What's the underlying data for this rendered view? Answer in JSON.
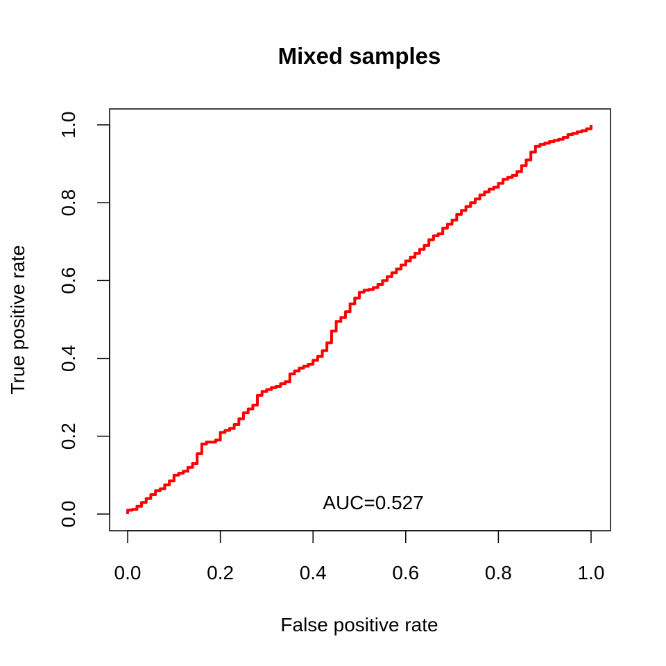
{
  "chart_data": {
    "type": "line",
    "title": "Mixed samples",
    "xlabel": "False positive rate",
    "ylabel": "True positive rate",
    "xlim": [
      0,
      1
    ],
    "ylim": [
      0,
      1
    ],
    "x_ticks": [
      "0.0",
      "0.2",
      "0.4",
      "0.6",
      "0.8",
      "1.0"
    ],
    "y_ticks": [
      "0.0",
      "0.2",
      "0.4",
      "0.6",
      "0.8",
      "1.0"
    ],
    "annotation": {
      "text": "AUC=0.527",
      "x": 0.53,
      "y": 0.03
    },
    "grid": false,
    "legend": "none",
    "series": [
      {
        "color": "#ff0000",
        "points": [
          [
            0.0,
            0.0
          ],
          [
            0.0,
            0.01
          ],
          [
            0.01,
            0.012
          ],
          [
            0.02,
            0.02
          ],
          [
            0.03,
            0.03
          ],
          [
            0.04,
            0.04
          ],
          [
            0.05,
            0.05
          ],
          [
            0.06,
            0.06
          ],
          [
            0.07,
            0.065
          ],
          [
            0.08,
            0.075
          ],
          [
            0.09,
            0.085
          ],
          [
            0.1,
            0.1
          ],
          [
            0.11,
            0.105
          ],
          [
            0.12,
            0.11
          ],
          [
            0.13,
            0.12
          ],
          [
            0.14,
            0.13
          ],
          [
            0.15,
            0.155
          ],
          [
            0.16,
            0.18
          ],
          [
            0.17,
            0.185
          ],
          [
            0.18,
            0.185
          ],
          [
            0.19,
            0.19
          ],
          [
            0.2,
            0.21
          ],
          [
            0.21,
            0.215
          ],
          [
            0.22,
            0.22
          ],
          [
            0.23,
            0.23
          ],
          [
            0.24,
            0.245
          ],
          [
            0.25,
            0.26
          ],
          [
            0.26,
            0.27
          ],
          [
            0.27,
            0.28
          ],
          [
            0.28,
            0.305
          ],
          [
            0.29,
            0.315
          ],
          [
            0.3,
            0.32
          ],
          [
            0.31,
            0.325
          ],
          [
            0.32,
            0.328
          ],
          [
            0.33,
            0.335
          ],
          [
            0.34,
            0.34
          ],
          [
            0.35,
            0.36
          ],
          [
            0.36,
            0.368
          ],
          [
            0.37,
            0.375
          ],
          [
            0.38,
            0.38
          ],
          [
            0.39,
            0.385
          ],
          [
            0.4,
            0.395
          ],
          [
            0.41,
            0.405
          ],
          [
            0.42,
            0.42
          ],
          [
            0.43,
            0.44
          ],
          [
            0.44,
            0.47
          ],
          [
            0.45,
            0.495
          ],
          [
            0.46,
            0.505
          ],
          [
            0.47,
            0.52
          ],
          [
            0.48,
            0.54
          ],
          [
            0.49,
            0.555
          ],
          [
            0.5,
            0.57
          ],
          [
            0.51,
            0.575
          ],
          [
            0.52,
            0.577
          ],
          [
            0.53,
            0.582
          ],
          [
            0.54,
            0.59
          ],
          [
            0.55,
            0.6
          ],
          [
            0.56,
            0.61
          ],
          [
            0.57,
            0.62
          ],
          [
            0.58,
            0.63
          ],
          [
            0.59,
            0.64
          ],
          [
            0.6,
            0.65
          ],
          [
            0.61,
            0.66
          ],
          [
            0.62,
            0.67
          ],
          [
            0.63,
            0.68
          ],
          [
            0.64,
            0.69
          ],
          [
            0.65,
            0.705
          ],
          [
            0.66,
            0.715
          ],
          [
            0.67,
            0.72
          ],
          [
            0.68,
            0.735
          ],
          [
            0.69,
            0.745
          ],
          [
            0.7,
            0.755
          ],
          [
            0.71,
            0.77
          ],
          [
            0.72,
            0.78
          ],
          [
            0.73,
            0.79
          ],
          [
            0.74,
            0.8
          ],
          [
            0.75,
            0.81
          ],
          [
            0.76,
            0.82
          ],
          [
            0.77,
            0.828
          ],
          [
            0.78,
            0.835
          ],
          [
            0.79,
            0.84
          ],
          [
            0.8,
            0.85
          ],
          [
            0.81,
            0.86
          ],
          [
            0.82,
            0.865
          ],
          [
            0.83,
            0.87
          ],
          [
            0.84,
            0.88
          ],
          [
            0.85,
            0.895
          ],
          [
            0.86,
            0.91
          ],
          [
            0.87,
            0.93
          ],
          [
            0.88,
            0.945
          ],
          [
            0.89,
            0.95
          ],
          [
            0.9,
            0.953
          ],
          [
            0.91,
            0.957
          ],
          [
            0.92,
            0.96
          ],
          [
            0.93,
            0.963
          ],
          [
            0.94,
            0.968
          ],
          [
            0.95,
            0.975
          ],
          [
            0.96,
            0.978
          ],
          [
            0.97,
            0.982
          ],
          [
            0.98,
            0.985
          ],
          [
            0.99,
            0.99
          ],
          [
            1.0,
            1.0
          ]
        ]
      }
    ]
  }
}
